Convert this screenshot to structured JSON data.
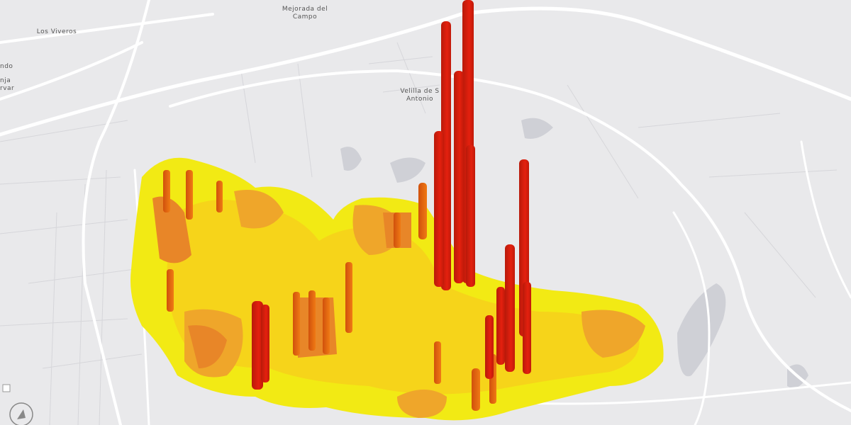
{
  "map": {
    "labels": [
      {
        "lines": [
          "Mejorada del",
          "Campo"
        ]
      },
      {
        "lines": [
          "Velilla de S",
          "Antonio"
        ]
      },
      {
        "lines": [
          "Los Viveros"
        ]
      },
      {
        "lines": [
          "ndo",
          "nja",
          "rvar"
        ]
      }
    ]
  }
}
